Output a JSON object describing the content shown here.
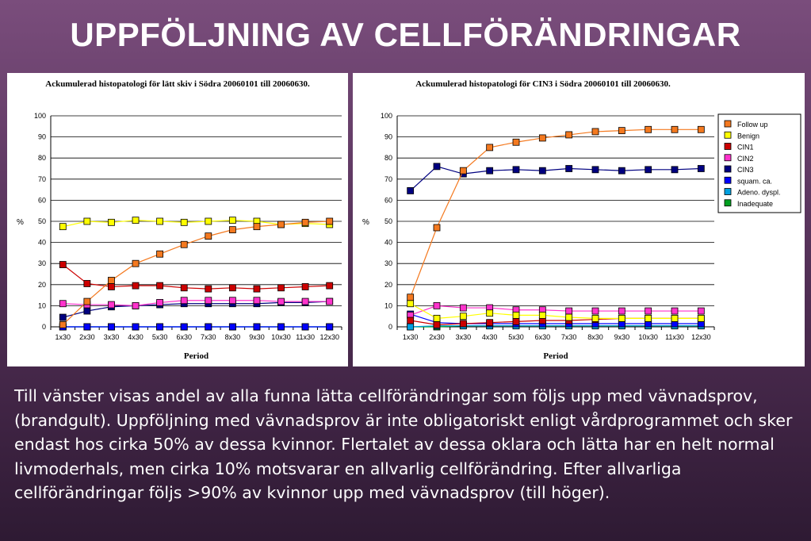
{
  "slide": {
    "title": "UPPFÖLJNING AV CELLFÖRÄNDRINGAR",
    "body_lines": [
      "Till vänster visas andel av alla funna lätta cellförändringar som följs upp med vävnadsprov,",
      "(brandgult). Uppföljning med vävnadsprov är inte obligatoriskt enligt vårdprogrammet och sker",
      "endast hos cirka 50% av dessa kvinnor. Flertalet av dessa oklara och lätta har en helt normal",
      "livmoderhals, men cirka 10% motsvarar en allvarlig cellförändring. Efter allvarliga",
      "cellförändringar följs >90% av kvinnor upp med vävnadsprov (till höger)."
    ]
  },
  "chart_data": [
    {
      "type": "line",
      "title": "Ackumulerad histopatologi för lätt skiv i Södra 20060101 till 20060630.",
      "xlabel": "Period",
      "ylabel": "%",
      "ylim": [
        0,
        100
      ],
      "yticks": [
        0,
        10,
        20,
        30,
        40,
        50,
        60,
        70,
        80,
        90,
        100
      ],
      "grid": true,
      "categories": [
        "1x30",
        "2x30",
        "3x30",
        "4x30",
        "5x30",
        "6x30",
        "7x30",
        "8x30",
        "9x30",
        "10x30",
        "11x30",
        "12x30"
      ],
      "series": [
        {
          "name": "Follow up",
          "color": "#f4791f",
          "values": [
            1,
            12,
            22,
            30,
            34.5,
            39,
            43,
            46,
            47.5,
            48.5,
            49.5,
            50
          ]
        },
        {
          "name": "Benign",
          "color": "#ffff00",
          "values": [
            47.5,
            50,
            49.5,
            50.5,
            50,
            49.5,
            50,
            50.5,
            50,
            48.5,
            49,
            48.5
          ]
        },
        {
          "name": "CIN1",
          "color": "#cc0000",
          "values": [
            29.5,
            20.5,
            19,
            19.5,
            19.5,
            18.5,
            18,
            18.5,
            18,
            18.5,
            19,
            19.5
          ]
        },
        {
          "name": "CIN2",
          "color": "#ff33cc",
          "values": [
            11,
            10.5,
            10.5,
            10,
            11.5,
            12.5,
            12.5,
            12.5,
            12.5,
            12,
            12,
            12
          ]
        },
        {
          "name": "CIN3",
          "color": "#000080",
          "values": [
            4.5,
            7.5,
            9.5,
            10,
            10.5,
            11,
            11,
            11,
            11,
            11.5,
            11.5,
            12
          ]
        },
        {
          "name": "squam. ca.",
          "color": "#0000ff",
          "values": [
            0,
            0,
            0,
            0,
            0,
            0,
            0,
            0,
            0,
            0,
            0,
            0
          ]
        },
        {
          "name": "Adeno. dyspl.",
          "color": "#00a0e0",
          "values": [
            0,
            0,
            0,
            0,
            0,
            0,
            0,
            0,
            0,
            0,
            0,
            0
          ]
        },
        {
          "name": "Inadequate",
          "color": "#00a020",
          "values": [
            0,
            0,
            0,
            0,
            0,
            0,
            0,
            0,
            0,
            0,
            0,
            0
          ]
        }
      ]
    },
    {
      "type": "line",
      "title": "Ackumulerad histopatologi för CIN3 i Södra 20060101 till 20060630.",
      "xlabel": "Period",
      "ylabel": "%",
      "ylim": [
        0,
        100
      ],
      "yticks": [
        0,
        10,
        20,
        30,
        40,
        50,
        60,
        70,
        80,
        90,
        100
      ],
      "grid": true,
      "legend": "right",
      "categories": [
        "1x30",
        "2x30",
        "3x30",
        "4x30",
        "5x30",
        "6x30",
        "7x30",
        "8x30",
        "9x30",
        "10x30",
        "11x30",
        "12x30"
      ],
      "series": [
        {
          "name": "Follow up",
          "color": "#f4791f",
          "values": [
            14,
            47,
            74,
            85,
            87.5,
            89.5,
            91,
            92.5,
            93,
            93.5,
            93.5,
            93.5
          ]
        },
        {
          "name": "Benign",
          "color": "#ffff00",
          "values": [
            11,
            4,
            5,
            6.5,
            5.5,
            5.5,
            4.5,
            4,
            4,
            4,
            4,
            4
          ]
        },
        {
          "name": "CIN1",
          "color": "#cc0000",
          "values": [
            3,
            1,
            1.5,
            2,
            2.5,
            3,
            3,
            3.5,
            4,
            4,
            4,
            4
          ]
        },
        {
          "name": "CIN2",
          "color": "#ff33cc",
          "values": [
            5.5,
            10,
            9,
            9,
            8,
            8,
            7.5,
            7.5,
            7.5,
            7.5,
            7.5,
            7.5
          ]
        },
        {
          "name": "CIN3",
          "color": "#000080",
          "values": [
            64.5,
            76,
            72.5,
            74,
            74.5,
            74,
            75,
            74.5,
            74,
            74.5,
            74.5,
            75
          ]
        },
        {
          "name": "squam. ca.",
          "color": "#0000ff",
          "values": [
            6,
            2,
            1.5,
            1.5,
            1.5,
            1.5,
            1.5,
            1.5,
            1.5,
            1.5,
            1.5,
            1.5
          ]
        },
        {
          "name": "Adeno. dyspl.",
          "color": "#00a0e0",
          "values": [
            0,
            0.5,
            0.5,
            0.5,
            0.5,
            0.5,
            0.5,
            0.5,
            0.5,
            0.5,
            0.5,
            0.5
          ]
        },
        {
          "name": "Inadequate",
          "color": "#00a020",
          "values": [
            0,
            0,
            0.5,
            0.5,
            0.5,
            0.5,
            0.5,
            0.5,
            0.5,
            0.5,
            0.5,
            0.5
          ]
        }
      ]
    }
  ]
}
